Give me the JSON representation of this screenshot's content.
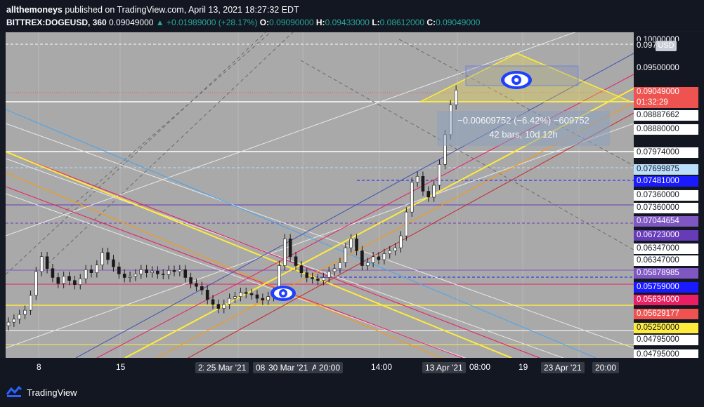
{
  "header": {
    "author": "allthemoneys",
    "published_text": "published on TradingView.com, April 13, 2021 18:27:32 EDT",
    "symbol": "BITTREX:DOGEUSD, 360",
    "last": "0.09049000",
    "change": "▲ +0.01989000 (+28.17%)",
    "o_label": "O:",
    "o_value": "0.09090000",
    "h_label": "H:",
    "h_value": "0.09433000",
    "l_label": "L:",
    "l_value": "0.08612000",
    "c_label": "C:",
    "c_value": "0.09049000"
  },
  "measure": {
    "line1": "−0.00609752 (−6.42%) −609752",
    "line2": "42 bars, 10d 12h"
  },
  "price_axis": {
    "currency": "USD",
    "labels": [
      {
        "text": "0.10000000",
        "bg": "#131722",
        "fg": "#ffffff"
      },
      {
        "text": "0.09730",
        "bg": "#131722",
        "fg": "#ffffff"
      },
      {
        "text": "0.09500000",
        "bg": "#131722",
        "fg": "#ffffff"
      },
      {
        "text": "0.09049000",
        "bg": "#ef5350",
        "fg": "#ffffff"
      },
      {
        "text": "01:32:29",
        "bg": "#ef5350",
        "fg": "#ffffff"
      },
      {
        "text": "0.08887662",
        "bg": "#ffffff",
        "fg": "#131722"
      },
      {
        "text": "0.08880000",
        "bg": "#ffffff",
        "fg": "#131722"
      },
      {
        "text": "0.07974000",
        "bg": "#ffffff",
        "fg": "#131722"
      },
      {
        "text": "0.07699875",
        "bg": "#bbdefb",
        "fg": "#131722"
      },
      {
        "text": "0.07481000",
        "bg": "#1a1aff",
        "fg": "#ffffff"
      },
      {
        "text": "0.07360000",
        "bg": "#ffffff",
        "fg": "#131722"
      },
      {
        "text": "0.07360000",
        "bg": "#ffffff",
        "fg": "#131722"
      },
      {
        "text": "0.07044654",
        "bg": "#7e57c2",
        "fg": "#ffffff"
      },
      {
        "text": "0.06723000",
        "bg": "#673ab7",
        "fg": "#ffffff"
      },
      {
        "text": "0.06347000",
        "bg": "#ffffff",
        "fg": "#131722"
      },
      {
        "text": "0.06347000",
        "bg": "#ffffff",
        "fg": "#131722"
      },
      {
        "text": "0.05878985",
        "bg": "#7e57c2",
        "fg": "#ffffff"
      },
      {
        "text": "0.05759000",
        "bg": "#1a1aff",
        "fg": "#ffffff"
      },
      {
        "text": "0.05634000",
        "bg": "#e91e63",
        "fg": "#ffffff"
      },
      {
        "text": "0.05629177",
        "bg": "#ef5350",
        "fg": "#ffffff"
      },
      {
        "text": "0.05250000",
        "bg": "#ffeb3b",
        "fg": "#131722"
      },
      {
        "text": "0.04795000",
        "bg": "#ffffff",
        "fg": "#131722"
      },
      {
        "text": "0.04795000",
        "bg": "#ffffff",
        "fg": "#131722"
      }
    ]
  },
  "time_axis": {
    "labels": [
      "8",
      "15",
      "22",
      "25 Mar '21",
      "08:30",
      "30 Mar '21",
      "Apr",
      "20:00",
      "14:00",
      "13 Apr '21",
      "08:00",
      "19",
      "23 Apr '21",
      "20:00"
    ]
  },
  "footer": {
    "brand": "TradingView"
  },
  "chart_data": {
    "type": "candlestick",
    "symbol": "BITTREX:DOGEUSD",
    "interval": "360",
    "price_range": [
      0.0455,
      0.1002
    ],
    "candles_close_approx": [
      0.0515,
      0.052,
      0.0528,
      0.0535,
      0.056,
      0.06,
      0.0625,
      0.0605,
      0.059,
      0.058,
      0.0592,
      0.0585,
      0.0578,
      0.0588,
      0.0603,
      0.0598,
      0.0611,
      0.0632,
      0.062,
      0.0608,
      0.0596,
      0.059,
      0.0592,
      0.0596,
      0.0603,
      0.0598,
      0.0601,
      0.0596,
      0.0595,
      0.0602,
      0.06,
      0.0603,
      0.059,
      0.058,
      0.0575,
      0.0569,
      0.0553,
      0.0545,
      0.0538,
      0.0545,
      0.0555,
      0.0558,
      0.0565,
      0.0563,
      0.0561,
      0.0555,
      0.0552,
      0.0558,
      0.0565,
      0.061,
      0.0655,
      0.0625,
      0.061,
      0.0598,
      0.059,
      0.0588,
      0.0585,
      0.059,
      0.06,
      0.0605,
      0.0615,
      0.064,
      0.0655,
      0.0635,
      0.061,
      0.0615,
      0.0625,
      0.062,
      0.063,
      0.0635,
      0.064,
      0.066,
      0.07,
      0.075,
      0.076,
      0.0735,
      0.0725,
      0.0745,
      0.078,
      0.083,
      0.088,
      0.0905
    ]
  }
}
